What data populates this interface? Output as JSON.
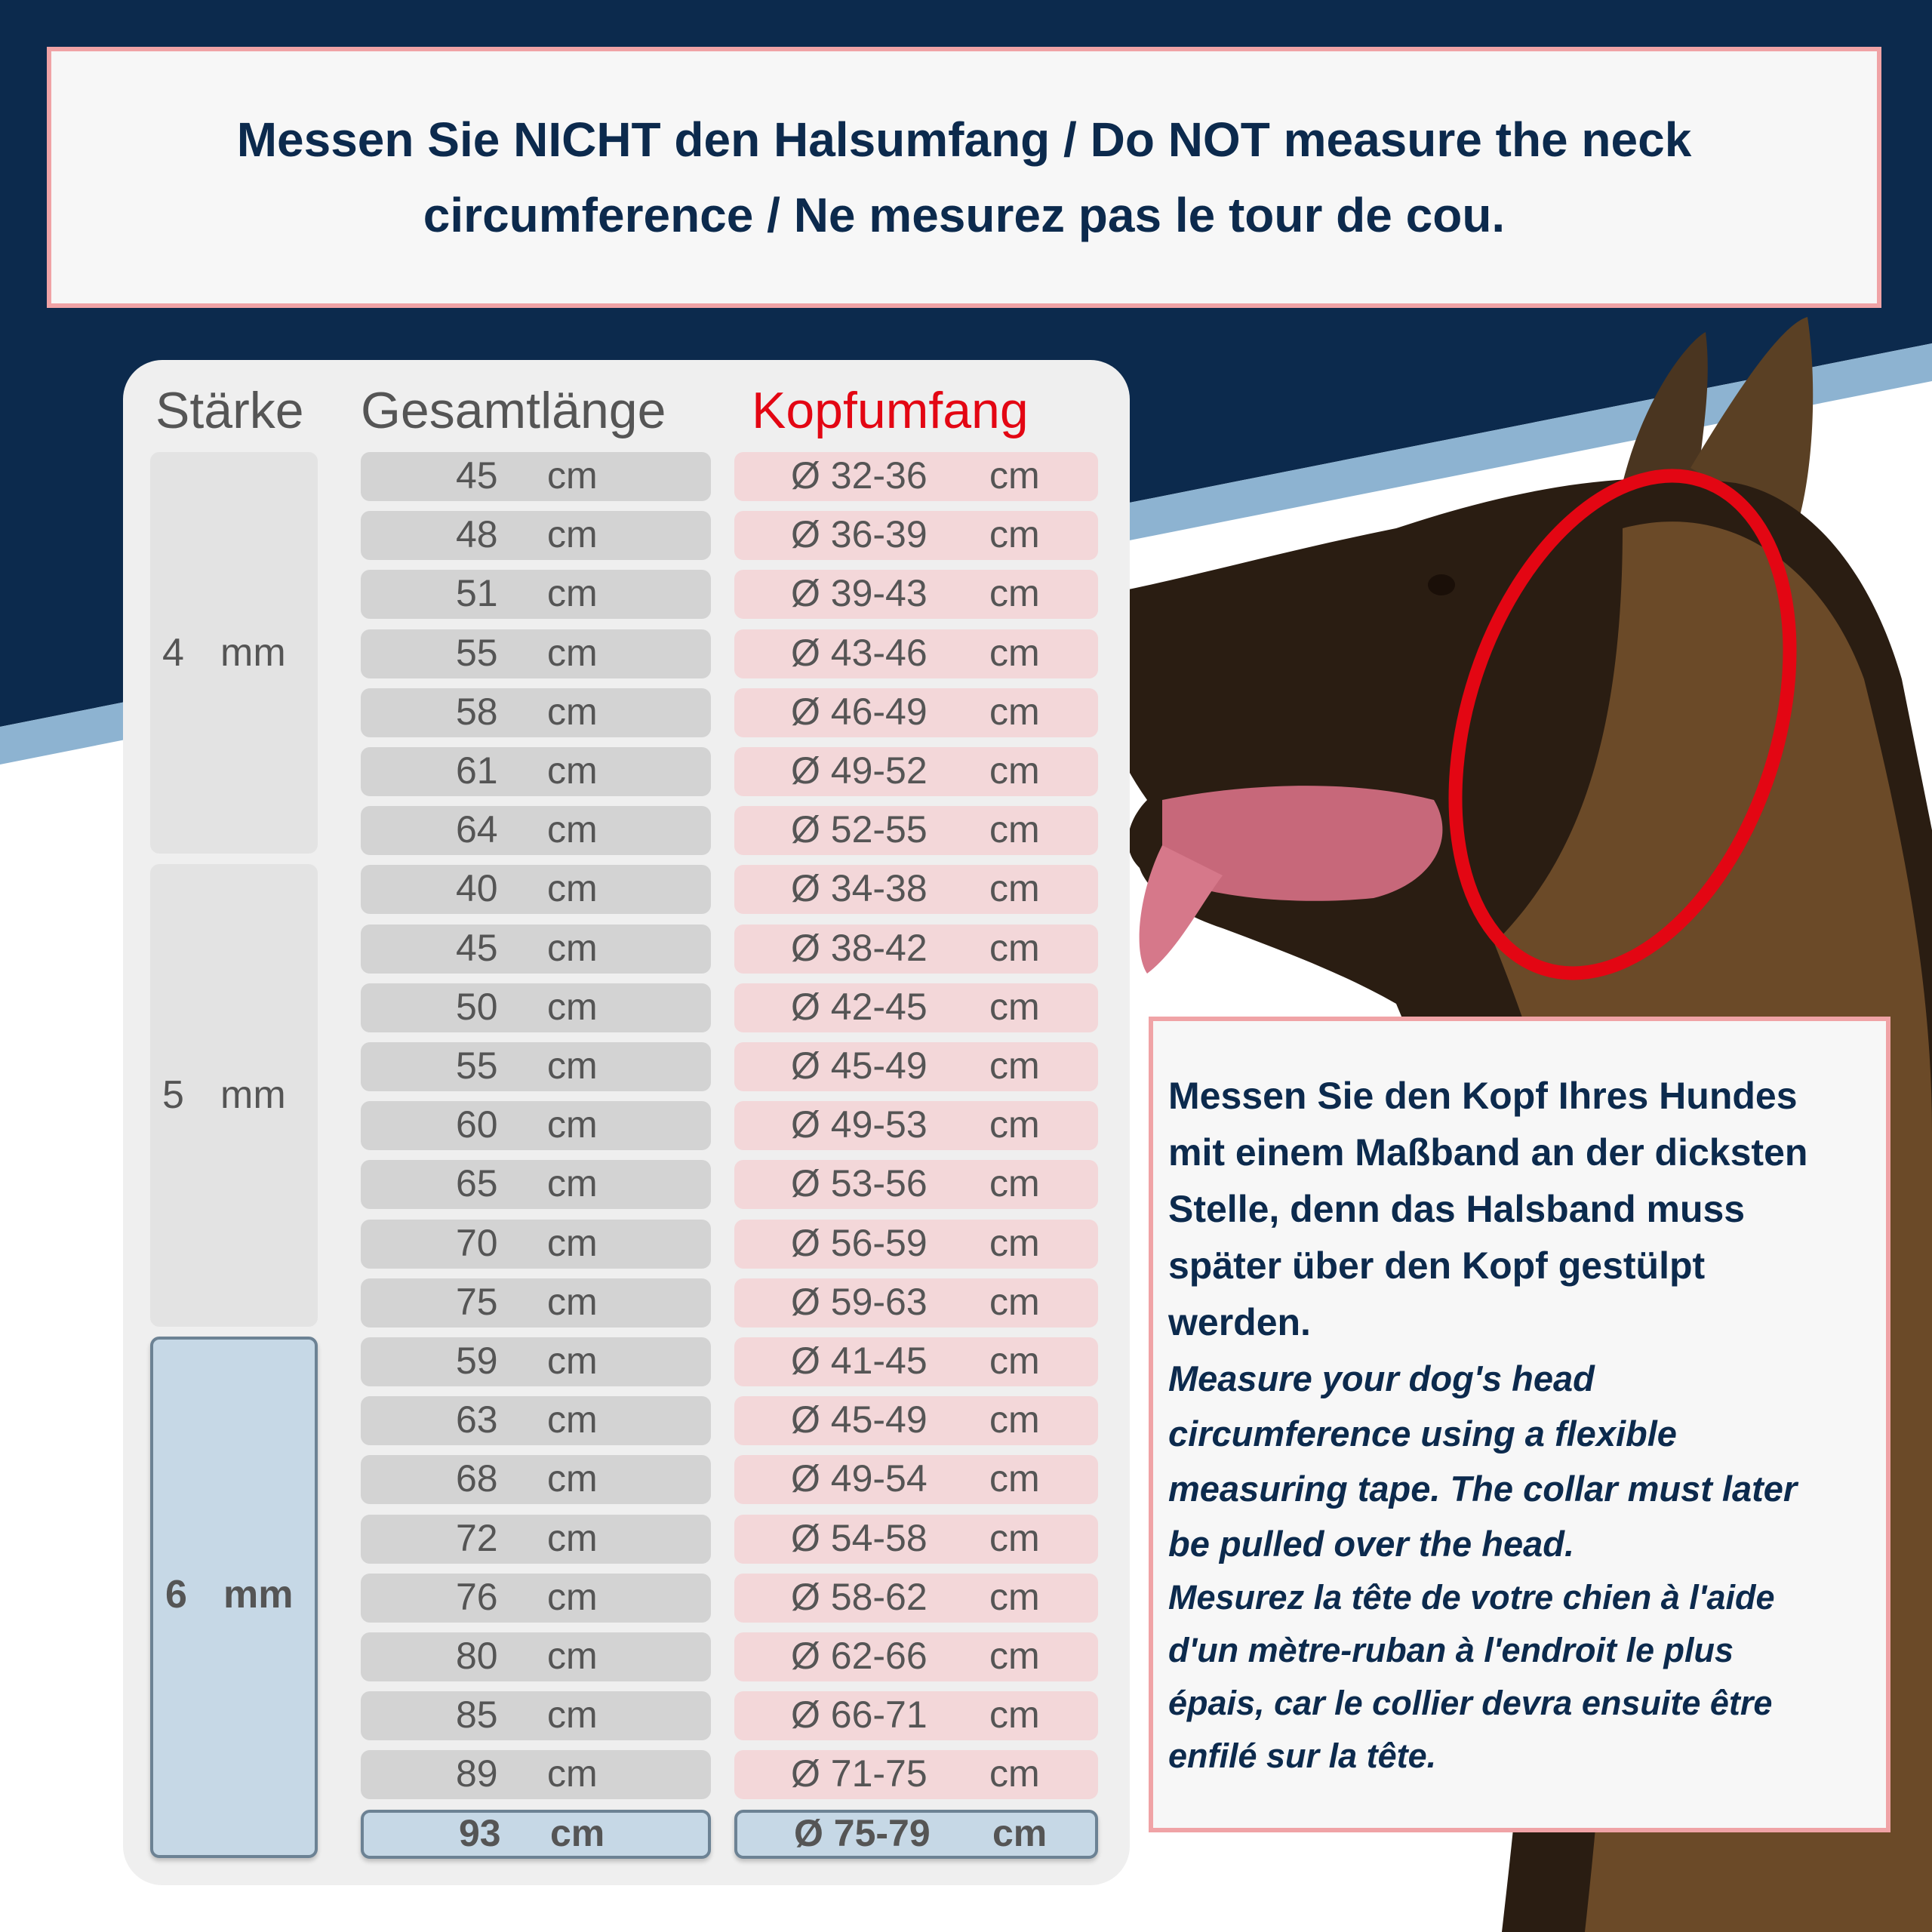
{
  "colors": {
    "navy": "#0c2a4d",
    "stripe": "#8db3d1",
    "pink_border": "#f0a3a6",
    "accent_red": "#e30613",
    "highlight_blue": "#c6d8e6"
  },
  "notice": {
    "lines": [
      "Messen Sie NICHT den Halsumfang / Do NOT measure the neck",
      "circumference / Ne mesurez pas le tour de cou."
    ]
  },
  "table": {
    "headers": {
      "thickness": "Stärke",
      "length": "Gesamtlänge",
      "head": "Kopfumfang"
    },
    "groups": [
      {
        "value": "4",
        "unit": "mm"
      },
      {
        "value": "5",
        "unit": "mm"
      },
      {
        "value": "6",
        "unit": "mm",
        "highlighted": true
      }
    ],
    "unit": "cm",
    "rows": [
      {
        "length": "45",
        "head": "Ø 32-36"
      },
      {
        "length": "48",
        "head": "Ø 36-39"
      },
      {
        "length": "51",
        "head": "Ø 39-43"
      },
      {
        "length": "55",
        "head": "Ø 43-46"
      },
      {
        "length": "58",
        "head": "Ø 46-49"
      },
      {
        "length": "61",
        "head": "Ø 49-52"
      },
      {
        "length": "64",
        "head": "Ø 52-55"
      },
      {
        "length": "40",
        "head": "Ø 34-38"
      },
      {
        "length": "45",
        "head": "Ø 38-42"
      },
      {
        "length": "50",
        "head": "Ø 42-45"
      },
      {
        "length": "55",
        "head": "Ø 45-49"
      },
      {
        "length": "60",
        "head": "Ø 49-53"
      },
      {
        "length": "65",
        "head": "Ø 53-56"
      },
      {
        "length": "70",
        "head": "Ø 56-59"
      },
      {
        "length": "75",
        "head": "Ø 59-63"
      },
      {
        "length": "59",
        "head": "Ø 41-45"
      },
      {
        "length": "63",
        "head": "Ø 45-49"
      },
      {
        "length": "68",
        "head": "Ø 49-54"
      },
      {
        "length": "72",
        "head": "Ø 54-58"
      },
      {
        "length": "76",
        "head": "Ø 58-62"
      },
      {
        "length": "80",
        "head": "Ø 62-66"
      },
      {
        "length": "85",
        "head": "Ø 66-71"
      },
      {
        "length": "89",
        "head": "Ø 71-75"
      },
      {
        "length": "93",
        "head": "Ø 75-79",
        "highlighted": true
      }
    ]
  },
  "info": {
    "de": [
      "Messen Sie den Kopf Ihres Hundes",
      "mit einem Maßband an der dicksten",
      "Stelle, denn das Halsband muss",
      "später über den Kopf gestülpt",
      "werden."
    ],
    "en": [
      "Measure your dog's head",
      "circumference using a flexible",
      "measuring tape. The collar must later",
      "be pulled over the head."
    ],
    "fr": [
      "Mesurez la tête de votre chien à l'aide",
      "d'un mètre-ruban à l'endroit le plus",
      "épais, car le collier devra ensuite être",
      "enfilé sur la tête."
    ]
  },
  "image": {
    "subject": "dog-head-with-red-measuring-ring"
  }
}
